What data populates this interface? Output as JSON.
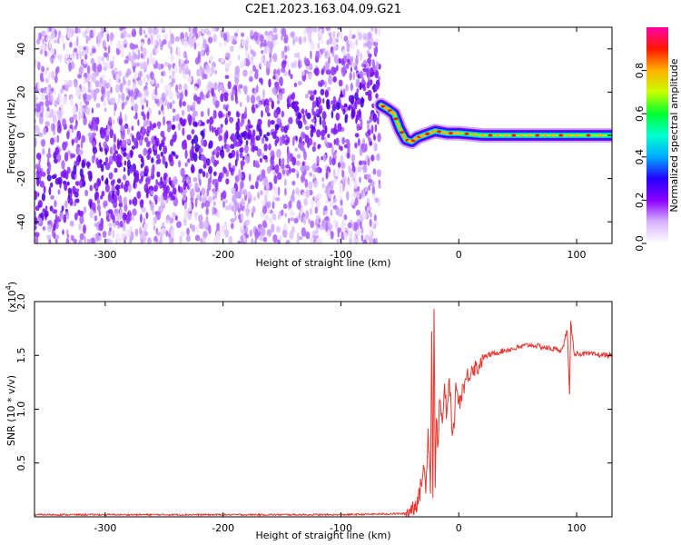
{
  "figure": {
    "title": "C2E1.2023.163.04.09.G21"
  },
  "chart_data": [
    {
      "type": "heatmap",
      "xlabel": "Height of straight line (km)",
      "ylabel": "Frequency (Hz)",
      "xlim": [
        -360,
        130
      ],
      "ylim": [
        -50,
        50
      ],
      "xticks": [
        -300,
        -200,
        -100,
        0,
        100
      ],
      "yticks": [
        -40,
        -20,
        0,
        20,
        40
      ],
      "colorbar": {
        "label": "Normalized spectral amplitude",
        "range": [
          0,
          1
        ],
        "ticks": [
          0.0,
          0.2,
          0.4,
          0.6,
          0.8
        ],
        "colormap": [
          "#ffffff",
          "#d9b3ff",
          "#8a00ff",
          "#2400ff",
          "#00aaff",
          "#00ffd0",
          "#00ff30",
          "#c8ff00",
          "#ffb000",
          "#ff1800",
          "#ff00a8"
        ]
      },
      "regions": {
        "noise_extent": [
          -360,
          -67
        ],
        "signal_track": [
          [
            -66,
            14
          ],
          [
            -60,
            12
          ],
          [
            -55,
            10
          ],
          [
            -50,
            3
          ],
          [
            -45,
            -2
          ],
          [
            -40,
            -3
          ],
          [
            -35,
            -1
          ],
          [
            -30,
            0
          ],
          [
            -20,
            2
          ],
          [
            -10,
            1
          ],
          [
            0,
            1
          ],
          [
            20,
            0
          ],
          [
            40,
            0
          ],
          [
            60,
            0
          ],
          [
            80,
            0
          ],
          [
            100,
            0
          ],
          [
            130,
            0
          ]
        ]
      }
    },
    {
      "type": "line",
      "xlabel": "Height of straight line (km)",
      "ylabel": "SNR (10 * v/v)",
      "scale_note": "(x10",
      "scale_exp": "4",
      "scale_close": ")",
      "xlim": [
        -360,
        130
      ],
      "ylim": [
        0,
        2.0
      ],
      "xticks": [
        -300,
        -200,
        -100,
        0,
        100
      ],
      "yticks": [
        0.5,
        1.0,
        1.5,
        2.0
      ],
      "ytick_labels": [
        "0.5",
        "1.0",
        "1.5",
        "2.0"
      ],
      "series": [
        {
          "color": "#e8362f",
          "x": [
            -360,
            -200,
            -100,
            -45,
            -38,
            -34,
            -30,
            -28,
            -26,
            -24,
            -23,
            -22,
            -21,
            -20,
            -19,
            -18,
            -16,
            -14,
            -12,
            -10,
            -8,
            -5,
            -2,
            0,
            4,
            8,
            12,
            16,
            20,
            25,
            30,
            40,
            50,
            60,
            70,
            80,
            88,
            92,
            94,
            95,
            98,
            110,
            130
          ],
          "y": [
            0.02,
            0.02,
            0.02,
            0.03,
            0.1,
            0.16,
            0.45,
            0.3,
            0.8,
            0.3,
            1.68,
            0.25,
            1.97,
            0.2,
            1.0,
            0.65,
            1.1,
            0.85,
            1.2,
            0.9,
            1.3,
            0.7,
            1.25,
            1.05,
            1.22,
            1.32,
            1.4,
            1.38,
            1.48,
            1.5,
            1.52,
            1.55,
            1.57,
            1.6,
            1.58,
            1.56,
            1.55,
            1.75,
            1.12,
            1.8,
            1.52,
            1.51,
            1.5
          ]
        }
      ]
    }
  ]
}
